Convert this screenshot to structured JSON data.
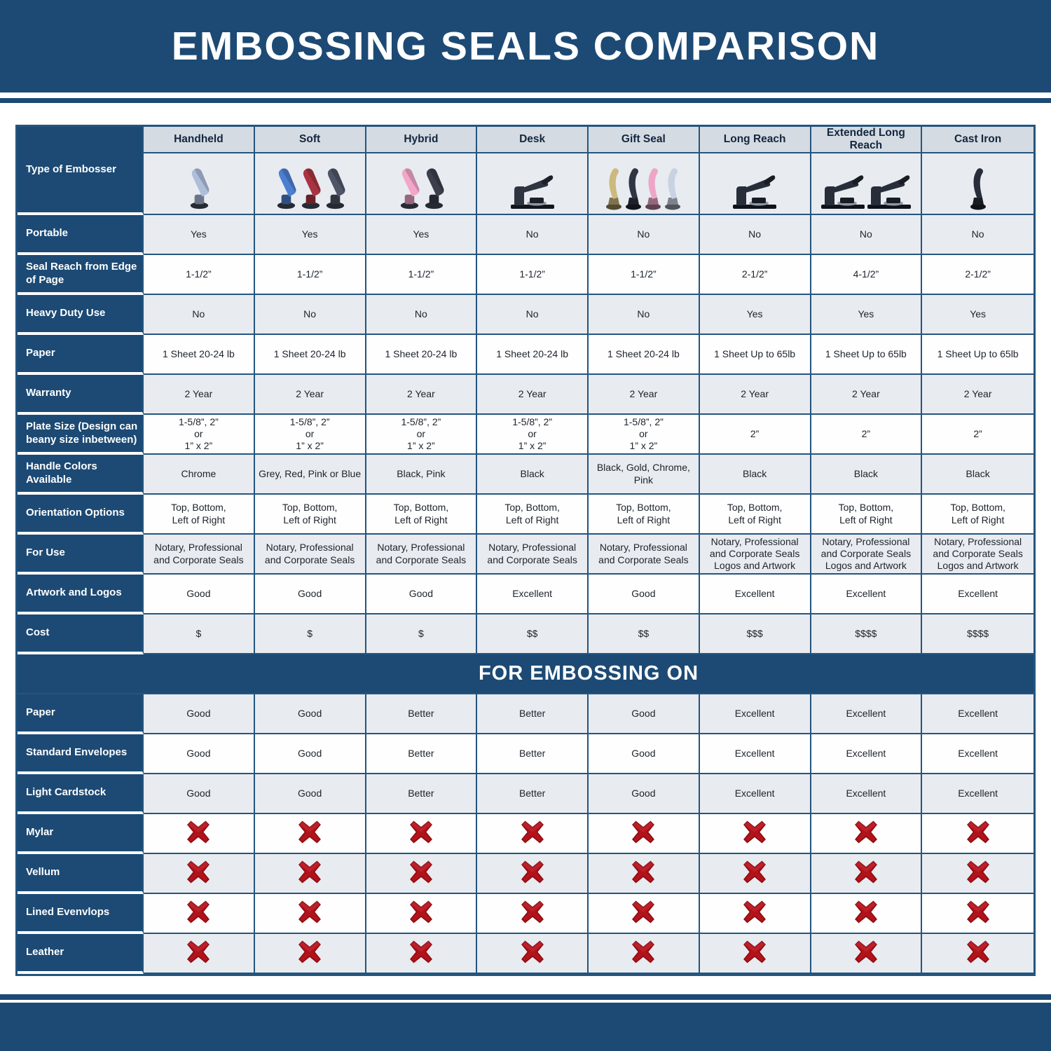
{
  "title": "EMBOSSING SEALS COMPARISON",
  "corner_label": "Type of Embosser",
  "section2_title": "FOR EMBOSSING ON",
  "colors": {
    "navy": "#1c4a74",
    "grid_border": "#24557f",
    "header_gray": "#d5dbe2",
    "cell_gray": "#e8ebf0",
    "cell_white": "#fefefe",
    "red_x": "#b2121a"
  },
  "columns": [
    {
      "label": "Handheld",
      "icon": "embosser-photo",
      "variant": "plier",
      "handle_colors": [
        "#aebdd9"
      ]
    },
    {
      "label": "Soft",
      "icon": "embosser-photo",
      "variant": "plier",
      "handle_colors": [
        "#4d7fd0",
        "#a93441",
        "#4e5566"
      ]
    },
    {
      "label": "Hybrid",
      "icon": "embosser-photo",
      "variant": "plier",
      "handle_colors": [
        "#f2a6c9",
        "#3a3f4b"
      ]
    },
    {
      "label": "Desk",
      "icon": "embosser-photo",
      "variant": "desk",
      "handle_colors": [
        "#2e3440"
      ]
    },
    {
      "label": "Gift Seal",
      "icon": "embosser-photo",
      "variant": "upright",
      "handle_colors": [
        "#cdb97e",
        "#2f3542",
        "#eda6c8",
        "#c9d2e2"
      ]
    },
    {
      "label": "Long Reach",
      "icon": "embosser-photo",
      "variant": "desk",
      "handle_colors": [
        "#272e3a"
      ]
    },
    {
      "label": "Extended Long Reach",
      "icon": "embosser-photo",
      "variant": "desk",
      "handle_colors": [
        "#272e3a",
        "#272e3a"
      ]
    },
    {
      "label": "Cast Iron",
      "icon": "embosser-photo",
      "variant": "upright",
      "handle_colors": [
        "#272e3a"
      ]
    }
  ],
  "rows": [
    {
      "label": "Portable",
      "values": [
        "Yes",
        "Yes",
        "Yes",
        "No",
        "No",
        "No",
        "No",
        "No"
      ]
    },
    {
      "label": "Seal Reach from Edge of Page",
      "values": [
        "1-1/2”",
        "1-1/2”",
        "1-1/2”",
        "1-1/2”",
        "1-1/2”",
        "2-1/2”",
        "4-1/2”",
        "2-1/2”"
      ]
    },
    {
      "label": "Heavy Duty Use",
      "values": [
        "No",
        "No",
        "No",
        "No",
        "No",
        "Yes",
        "Yes",
        "Yes"
      ]
    },
    {
      "label": "Paper",
      "values": [
        "1 Sheet 20-24 lb",
        "1 Sheet 20-24 lb",
        "1 Sheet 20-24 lb",
        "1 Sheet 20-24 lb",
        "1 Sheet 20-24 lb",
        "1 Sheet Up to 65lb",
        "1 Sheet Up to 65lb",
        "1 Sheet Up to 65lb"
      ]
    },
    {
      "label": "Warranty",
      "values": [
        "2 Year",
        "2 Year",
        "2 Year",
        "2 Year",
        "2 Year",
        "2 Year",
        "2 Year",
        "2 Year"
      ]
    },
    {
      "label": "Plate Size (Design can beany size inbetween)",
      "values": [
        "1-5/8”, 2”\nor\n1” x 2”",
        "1-5/8”, 2”\nor\n1” x 2”",
        "1-5/8”, 2”\nor\n1” x 2”",
        "1-5/8”, 2”\nor\n1” x 2”",
        "1-5/8”, 2”\nor\n1” x 2”",
        "2”",
        "2”",
        "2”"
      ]
    },
    {
      "label": "Handle Colors Available",
      "values": [
        "Chrome",
        "Grey, Red, Pink or Blue",
        "Black, Pink",
        "Black",
        "Black, Gold, Chrome, Pink",
        "Black",
        "Black",
        "Black"
      ]
    },
    {
      "label": "Orientation Options",
      "values": [
        "Top, Bottom,\nLeft of Right",
        "Top, Bottom,\nLeft of Right",
        "Top, Bottom,\nLeft of Right",
        "Top, Bottom,\nLeft of Right",
        "Top, Bottom,\nLeft of Right",
        "Top, Bottom,\nLeft of Right",
        "Top, Bottom,\nLeft of Right",
        "Top, Bottom,\nLeft of Right"
      ]
    },
    {
      "label": "For Use",
      "values": [
        "Notary, Professional\nand Corporate Seals",
        "Notary, Professional\nand Corporate Seals",
        "Notary, Professional\nand Corporate Seals",
        "Notary, Professional\nand Corporate Seals",
        "Notary, Professional\nand Corporate Seals",
        "Notary, Professional\nand Corporate Seals\nLogos and Artwork",
        "Notary, Professional\nand Corporate Seals\nLogos and Artwork",
        "Notary, Professional\nand Corporate Seals\nLogos and Artwork"
      ]
    },
    {
      "label": "Artwork and Logos",
      "values": [
        "Good",
        "Good",
        "Good",
        "Excellent",
        "Good",
        "Excellent",
        "Excellent",
        "Excellent"
      ]
    },
    {
      "label": "Cost",
      "values": [
        "$",
        "$",
        "$",
        "$$",
        "$$",
        "$$$",
        "$$$$",
        "$$$$"
      ]
    }
  ],
  "embossing_rows": [
    {
      "label": "Paper",
      "type": "text",
      "values": [
        "Good",
        "Good",
        "Better",
        "Better",
        "Good",
        "Excellent",
        "Excellent",
        "Excellent"
      ]
    },
    {
      "label": "Standard Envelopes",
      "type": "text",
      "values": [
        "Good",
        "Good",
        "Better",
        "Better",
        "Good",
        "Excellent",
        "Excellent",
        "Excellent"
      ]
    },
    {
      "label": "Light Cardstock",
      "type": "text",
      "values": [
        "Good",
        "Good",
        "Better",
        "Better",
        "Good",
        "Excellent",
        "Excellent",
        "Excellent"
      ]
    },
    {
      "label": "Mylar",
      "type": "x",
      "icon": "red-x-icon"
    },
    {
      "label": "Vellum",
      "type": "x",
      "icon": "red-x-icon"
    },
    {
      "label": "Lined Evenvlops",
      "type": "x",
      "icon": "red-x-icon"
    },
    {
      "label": "Leather",
      "type": "x",
      "icon": "red-x-icon"
    }
  ]
}
